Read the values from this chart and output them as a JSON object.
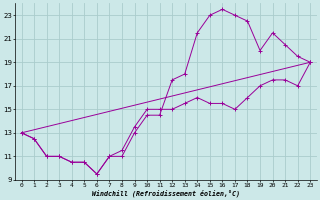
{
  "xlabel": "Windchill (Refroidissement éolien,°C)",
  "bg_color": "#cce8e8",
  "grid_color": "#aacccc",
  "line_color": "#990099",
  "xlim": [
    -0.5,
    23.5
  ],
  "ylim": [
    9,
    24
  ],
  "xticks": [
    0,
    1,
    2,
    3,
    4,
    5,
    6,
    7,
    8,
    9,
    10,
    11,
    12,
    13,
    14,
    15,
    16,
    17,
    18,
    19,
    20,
    21,
    22,
    23
  ],
  "yticks": [
    9,
    11,
    13,
    15,
    17,
    19,
    21,
    23
  ],
  "line1_x": [
    0,
    1,
    2,
    3,
    4,
    5,
    6,
    7,
    8,
    9,
    10,
    11,
    12,
    13,
    14,
    15,
    16,
    17,
    18,
    19,
    20,
    21,
    22,
    23
  ],
  "line1_y": [
    13,
    12.5,
    11,
    11,
    10.5,
    10.5,
    9.5,
    11,
    11.5,
    13.5,
    15,
    15,
    15,
    15.5,
    16,
    15.5,
    15.5,
    15,
    16,
    17,
    17.5,
    17.5,
    17,
    19
  ],
  "line2_x": [
    0,
    1,
    2,
    3,
    4,
    5,
    6,
    7,
    8,
    9,
    10,
    11,
    12,
    13,
    14,
    15,
    16,
    17,
    18,
    19,
    20,
    21,
    22,
    23
  ],
  "line2_y": [
    13,
    12.5,
    11,
    11,
    10.5,
    10.5,
    9.5,
    11,
    11,
    13,
    14.5,
    14.5,
    17.5,
    18,
    21.5,
    23,
    23.5,
    23,
    22.5,
    20,
    21.5,
    20.5,
    19.5,
    19
  ],
  "line3_x": [
    0,
    23
  ],
  "line3_y": [
    13,
    19
  ],
  "marker_size": 2.5
}
